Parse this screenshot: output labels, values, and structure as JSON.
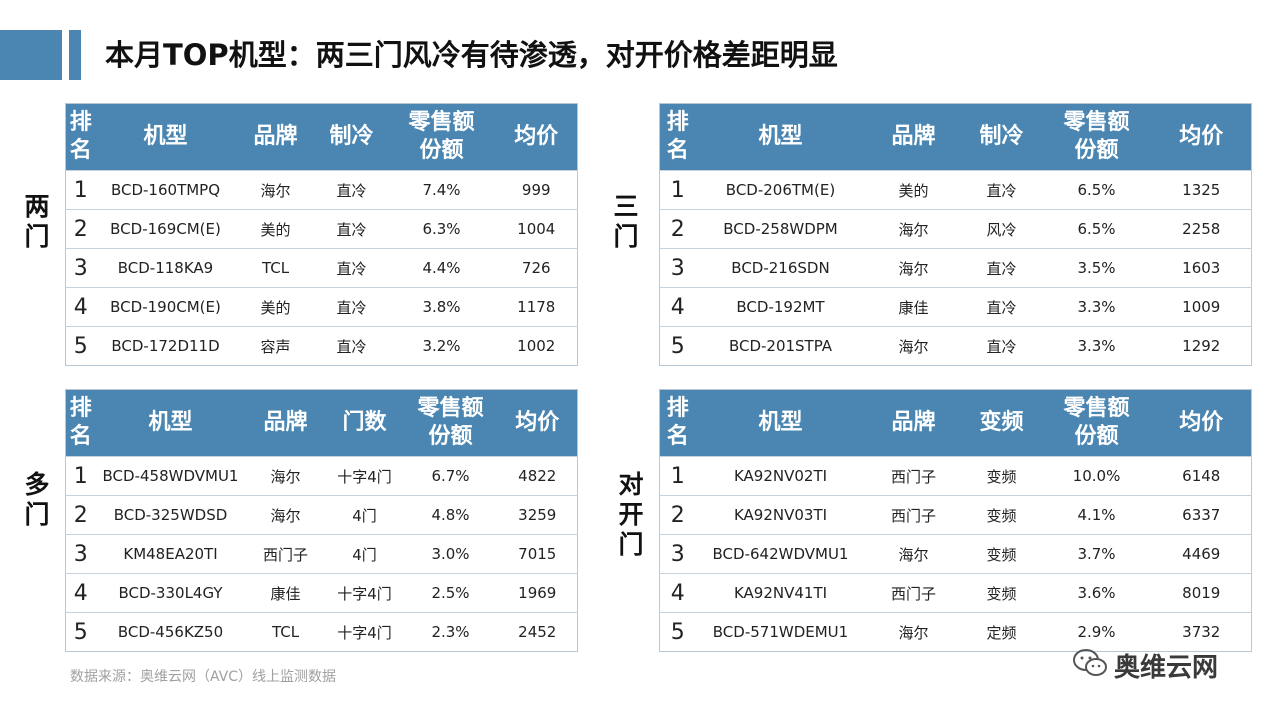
{
  "title": "本月TOP机型：两三门风冷有待渗透，对开价格差距明显",
  "source_note": "数据来源：奥维云网（AVC）线上监测数据",
  "watermark_text": "奥维云网",
  "tables": [
    {
      "group_label": "两门",
      "headers": [
        "排名",
        "机型",
        "品牌",
        "制冷",
        "零售额份额",
        "均价"
      ],
      "rows": [
        [
          "1",
          "BCD-160TMPQ",
          "海尔",
          "直冷",
          "7.4%",
          "999"
        ],
        [
          "2",
          "BCD-169CM(E)",
          "美的",
          "直冷",
          "6.3%",
          "1004"
        ],
        [
          "3",
          "BCD-118KA9",
          "TCL",
          "直冷",
          "4.4%",
          "726"
        ],
        [
          "4",
          "BCD-190CM(E)",
          "美的",
          "直冷",
          "3.8%",
          "1178"
        ],
        [
          "5",
          "BCD-172D11D",
          "容声",
          "直冷",
          "3.2%",
          "1002"
        ]
      ]
    },
    {
      "group_label": "三门",
      "headers": [
        "排名",
        "机型",
        "品牌",
        "制冷",
        "零售额份额",
        "均价"
      ],
      "rows": [
        [
          "1",
          "BCD-206TM(E)",
          "美的",
          "直冷",
          "6.5%",
          "1325"
        ],
        [
          "2",
          "BCD-258WDPM",
          "海尔",
          "风冷",
          "6.5%",
          "2258"
        ],
        [
          "3",
          "BCD-216SDN",
          "海尔",
          "直冷",
          "3.5%",
          "1603"
        ],
        [
          "4",
          "BCD-192MT",
          "康佳",
          "直冷",
          "3.3%",
          "1009"
        ],
        [
          "5",
          "BCD-201STPA",
          "海尔",
          "直冷",
          "3.3%",
          "1292"
        ]
      ]
    },
    {
      "group_label": "多门",
      "headers": [
        "排名",
        "机型",
        "品牌",
        "门数",
        "零售额份额",
        "均价"
      ],
      "rows": [
        [
          "1",
          "BCD-458WDVMU1",
          "海尔",
          "十字4门",
          "6.7%",
          "4822"
        ],
        [
          "2",
          "BCD-325WDSD",
          "海尔",
          "4门",
          "4.8%",
          "3259"
        ],
        [
          "3",
          "KM48EA20TI",
          "西门子",
          "4门",
          "3.0%",
          "7015"
        ],
        [
          "4",
          "BCD-330L4GY",
          "康佳",
          "十字4门",
          "2.5%",
          "1969"
        ],
        [
          "5",
          "BCD-456KZ50",
          "TCL",
          "十字4门",
          "2.3%",
          "2452"
        ]
      ]
    },
    {
      "group_label": "对开门",
      "headers": [
        "排名",
        "机型",
        "品牌",
        "变频",
        "零售额份额",
        "均价"
      ],
      "rows": [
        [
          "1",
          "KA92NV02TI",
          "西门子",
          "变频",
          "10.0%",
          "6148"
        ],
        [
          "2",
          "KA92NV03TI",
          "西门子",
          "变频",
          "4.1%",
          "6337"
        ],
        [
          "3",
          "BCD-642WDVMU1",
          "海尔",
          "变频",
          "3.7%",
          "4469"
        ],
        [
          "4",
          "KA92NV41TI",
          "西门子",
          "变频",
          "3.6%",
          "8019"
        ],
        [
          "5",
          "BCD-571WDEMU1",
          "海尔",
          "定频",
          "2.9%",
          "3732"
        ]
      ]
    }
  ]
}
